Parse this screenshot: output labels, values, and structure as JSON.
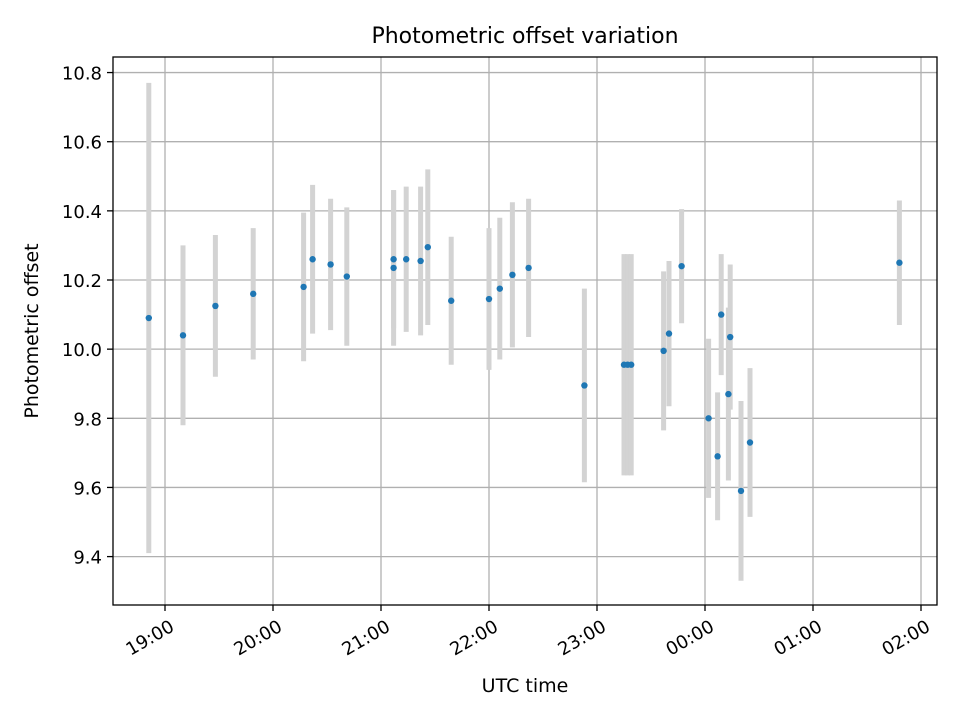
{
  "chart_data": {
    "type": "scatter",
    "title": "Photometric offset variation",
    "xlabel": "UTC time",
    "ylabel": "Photometric offset",
    "x_tick_labels": [
      "19:00",
      "20:00",
      "21:00",
      "22:00",
      "23:00",
      "00:00",
      "01:00",
      "02:00"
    ],
    "y_tick_labels": [
      "9.4",
      "9.6",
      "9.8",
      "10.0",
      "10.2",
      "10.4",
      "10.6",
      "10.8"
    ],
    "ylim": [
      9.26,
      10.845
    ],
    "grid": true,
    "colors": {
      "point": "#1f77b4",
      "errorbar": "#d3d3d3",
      "grid": "#b0b0b0"
    },
    "points": [
      {
        "t": "18:51",
        "y": 10.09,
        "err": 0.68
      },
      {
        "t": "19:10",
        "y": 10.04,
        "err": 0.26
      },
      {
        "t": "19:28",
        "y": 10.125,
        "err": 0.205
      },
      {
        "t": "19:49",
        "y": 10.16,
        "err": 0.19
      },
      {
        "t": "20:17",
        "y": 10.18,
        "err": 0.215
      },
      {
        "t": "20:22",
        "y": 10.26,
        "err": 0.215
      },
      {
        "t": "20:32",
        "y": 10.245,
        "err": 0.19
      },
      {
        "t": "20:41",
        "y": 10.21,
        "err": 0.2
      },
      {
        "t": "21:07",
        "y": 10.26,
        "err": 0.2
      },
      {
        "t": "21:07",
        "y": 10.235,
        "err": 0.225
      },
      {
        "t": "21:14",
        "y": 10.26,
        "err": 0.21
      },
      {
        "t": "21:22",
        "y": 10.255,
        "err": 0.215
      },
      {
        "t": "21:26",
        "y": 10.295,
        "err": 0.225
      },
      {
        "t": "21:39",
        "y": 10.14,
        "err": 0.185
      },
      {
        "t": "22:00",
        "y": 10.145,
        "err": 0.205
      },
      {
        "t": "22:06",
        "y": 10.175,
        "err": 0.205
      },
      {
        "t": "22:13",
        "y": 10.215,
        "err": 0.21
      },
      {
        "t": "22:22",
        "y": 10.235,
        "err": 0.2
      },
      {
        "t": "22:53",
        "y": 9.895,
        "err": 0.28
      },
      {
        "t": "23:15",
        "y": 9.955,
        "err": 0.32
      },
      {
        "t": "23:17",
        "y": 9.955,
        "err": 0.32
      },
      {
        "t": "23:19",
        "y": 9.955,
        "err": 0.32
      },
      {
        "t": "23:37",
        "y": 9.995,
        "err": 0.23
      },
      {
        "t": "23:40",
        "y": 10.045,
        "err": 0.21
      },
      {
        "t": "23:47",
        "y": 10.24,
        "err": 0.165
      },
      {
        "t": "00:02",
        "y": 9.8,
        "err": 0.23
      },
      {
        "t": "00:07",
        "y": 9.69,
        "err": 0.185
      },
      {
        "t": "00:09",
        "y": 10.1,
        "err": 0.175
      },
      {
        "t": "00:13",
        "y": 9.87,
        "err": 0.25
      },
      {
        "t": "00:14",
        "y": 10.035,
        "err": 0.21
      },
      {
        "t": "00:20",
        "y": 9.59,
        "err": 0.26
      },
      {
        "t": "00:25",
        "y": 9.73,
        "err": 0.215
      },
      {
        "t": "01:48",
        "y": 10.25,
        "err": 0.18
      }
    ]
  }
}
